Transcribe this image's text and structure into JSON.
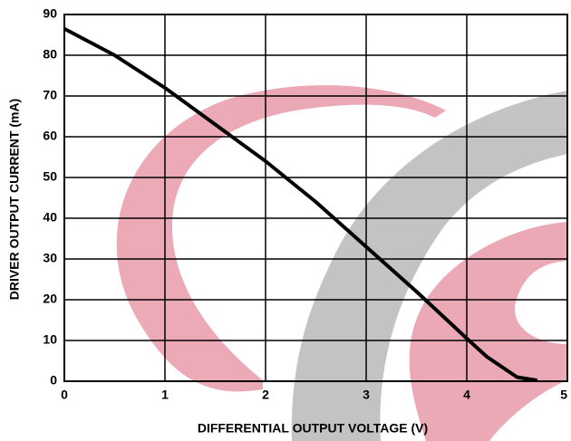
{
  "chart_data": {
    "type": "line",
    "x_label": "DIFFERENTIAL OUTPUT VOLTAGE (V)",
    "y_label": "DRIVER OUTPUT CURRENT (mA)",
    "x": [
      0,
      0.5,
      1,
      1.5,
      2,
      2.5,
      3,
      3.5,
      4,
      4.2,
      4.5,
      4.7
    ],
    "values": [
      86.5,
      80,
      72,
      63,
      54,
      44,
      33,
      22,
      10.5,
      6,
      1,
      0.2
    ],
    "color": "#000000",
    "xlim": [
      0,
      5
    ],
    "xticks": [
      0,
      1,
      2,
      3,
      4,
      5
    ],
    "ylim": [
      0,
      90
    ],
    "yticks": [
      0,
      10,
      20,
      30,
      40,
      50,
      60,
      70,
      80,
      90
    ],
    "grid": true
  }
}
